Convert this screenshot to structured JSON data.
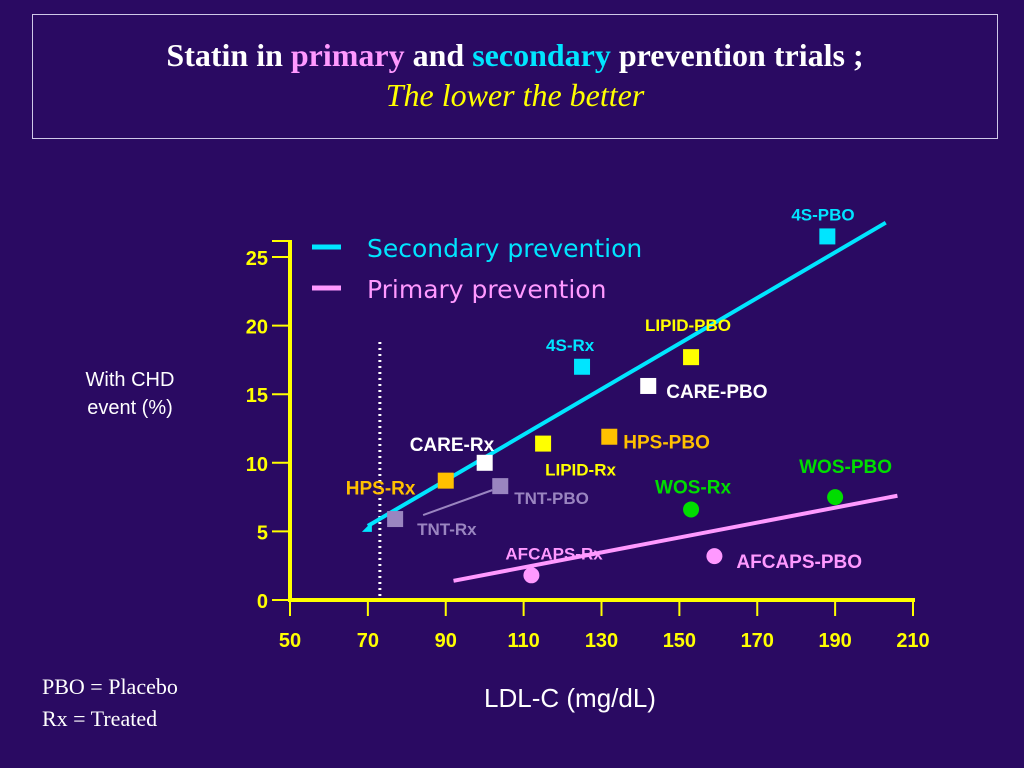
{
  "slide": {
    "title_part1": "Statin in",
    "title_primary": "primary",
    "title_and": "and",
    "title_secondary": "secondary",
    "title_part2": "prevention trials ;",
    "subtitle": "The lower the better",
    "footnote_pbo": "PBO = Placebo",
    "footnote_rx": "Rx = Treated"
  },
  "colors": {
    "background": "#2a0a62",
    "axis": "#ffff00",
    "secondary": "#00e5ff",
    "primary": "#ff99ff"
  },
  "chart_data": {
    "type": "scatter",
    "xlabel": "LDL-C (mg/dL)",
    "ylabel_line1": "With CHD",
    "ylabel_line2": "event (%)",
    "xlim": [
      50,
      210
    ],
    "ylim": [
      0,
      25
    ],
    "x_ticks": [
      50,
      70,
      90,
      110,
      130,
      150,
      170,
      190,
      210
    ],
    "y_ticks": [
      0,
      5,
      10,
      15,
      20,
      25
    ],
    "threshold_x": 70,
    "legend": [
      {
        "name": "Secondary prevention",
        "color": "#00e5ff"
      },
      {
        "name": "Primary prevention",
        "color": "#ff99ff"
      }
    ],
    "trend_lines": [
      {
        "series": "Secondary prevention",
        "color": "#00e5ff",
        "x": [
          70,
          203
        ],
        "y": [
          5.4,
          27.5
        ]
      },
      {
        "series": "Primary prevention",
        "color": "#ff99ff",
        "x": [
          92,
          206
        ],
        "y": [
          1.4,
          7.6
        ]
      }
    ],
    "points": [
      {
        "label": "4S-PBO",
        "x": 188,
        "y": 26.5,
        "shape": "square",
        "color": "#00e5ff",
        "label_color": "#00e5ff"
      },
      {
        "label": "4S-Rx",
        "x": 125,
        "y": 17.0,
        "shape": "square",
        "color": "#00e5ff",
        "label_color": "#00e5ff"
      },
      {
        "label": "LIPID-PBO",
        "x": 153,
        "y": 17.7,
        "shape": "square",
        "color": "#ffff00",
        "label_color": "#ffff00"
      },
      {
        "label": "LIPID-Rx",
        "x": 115,
        "y": 11.4,
        "shape": "square",
        "color": "#ffff00",
        "label_color": "#ffff00"
      },
      {
        "label": "CARE-PBO",
        "x": 142,
        "y": 15.6,
        "shape": "square",
        "color": "#ffffff",
        "label_color": "#ffffff"
      },
      {
        "label": "CARE-Rx",
        "x": 100,
        "y": 10.0,
        "shape": "square",
        "color": "#ffffff",
        "label_color": "#ffffff"
      },
      {
        "label": "HPS-PBO",
        "x": 132,
        "y": 11.9,
        "shape": "square",
        "color": "#ffc000",
        "label_color": "#ffc000"
      },
      {
        "label": "HPS-Rx",
        "x": 90,
        "y": 8.7,
        "shape": "square",
        "color": "#ffc000",
        "label_color": "#ffc000"
      },
      {
        "label": "TNT-PBO",
        "x": 104,
        "y": 8.3,
        "shape": "square",
        "color": "#9a85c0",
        "label_color": "#9a85c0"
      },
      {
        "label": "TNT-Rx",
        "x": 77,
        "y": 5.9,
        "shape": "square",
        "color": "#9a85c0",
        "label_color": "#9a85c0"
      },
      {
        "label": "WOS-PBO",
        "x": 190,
        "y": 7.5,
        "shape": "circle",
        "color": "#00dd00",
        "label_color": "#00dd00"
      },
      {
        "label": "WOS-Rx",
        "x": 153,
        "y": 6.6,
        "shape": "circle",
        "color": "#00dd00",
        "label_color": "#00dd00"
      },
      {
        "label": "AFCAPS-PBO",
        "x": 159,
        "y": 3.2,
        "shape": "circle",
        "color": "#ff99ff",
        "label_color": "#ff99ff"
      },
      {
        "label": "AFCAPS-Rx",
        "x": 112,
        "y": 1.8,
        "shape": "circle",
        "color": "#ff99ff",
        "label_color": "#ff99ff"
      }
    ]
  }
}
